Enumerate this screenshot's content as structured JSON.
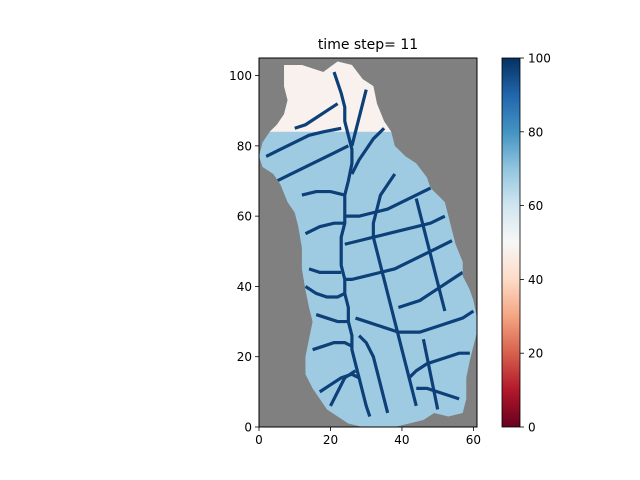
{
  "chart_data": {
    "type": "heatmap",
    "title": "time step= 11",
    "xlabel": "",
    "ylabel": "",
    "xlim": [
      0,
      61
    ],
    "ylim": [
      0,
      105
    ],
    "x_ticks": [
      0,
      20,
      40,
      60
    ],
    "y_ticks": [
      0,
      20,
      40,
      60,
      80,
      100
    ],
    "grid": false,
    "masked_color": "#808080",
    "colorbar": {
      "colormap": "RdBu",
      "vmin": 0,
      "vmax": 100,
      "ticks": [
        0,
        20,
        40,
        60,
        80,
        100
      ]
    },
    "domain_outline": {
      "description": "watershed mask outline as [x, y] in data units",
      "points": [
        [
          7,
          103
        ],
        [
          12,
          103
        ],
        [
          18,
          101
        ],
        [
          22,
          104
        ],
        [
          26,
          103
        ],
        [
          29,
          99
        ],
        [
          32,
          97
        ],
        [
          33,
          92
        ],
        [
          35,
          87
        ],
        [
          37,
          84
        ],
        [
          38,
          80
        ],
        [
          41,
          77
        ],
        [
          44,
          75
        ],
        [
          47,
          71
        ],
        [
          48,
          68
        ],
        [
          50,
          66
        ],
        [
          52,
          64
        ],
        [
          53,
          60
        ],
        [
          54,
          56
        ],
        [
          55,
          52
        ],
        [
          57,
          47
        ],
        [
          57,
          43
        ],
        [
          59,
          39
        ],
        [
          60,
          36
        ],
        [
          61,
          31
        ],
        [
          61,
          27
        ],
        [
          60,
          23
        ],
        [
          59,
          19
        ],
        [
          58,
          14
        ],
        [
          58,
          8
        ],
        [
          57,
          4
        ],
        [
          53,
          3
        ],
        [
          49,
          4
        ],
        [
          46,
          2
        ],
        [
          42,
          1
        ],
        [
          38,
          0
        ],
        [
          33,
          0
        ],
        [
          29,
          0
        ],
        [
          25,
          1
        ],
        [
          22,
          3
        ],
        [
          19,
          5
        ],
        [
          17,
          8
        ],
        [
          15,
          11
        ],
        [
          13,
          15
        ],
        [
          13,
          20
        ],
        [
          14,
          25
        ],
        [
          15,
          30
        ],
        [
          14,
          34
        ],
        [
          13,
          39
        ],
        [
          12,
          45
        ],
        [
          12,
          51
        ],
        [
          11,
          57
        ],
        [
          10,
          61
        ],
        [
          8,
          64
        ],
        [
          6,
          69
        ],
        [
          4,
          72
        ],
        [
          1,
          74
        ],
        [
          0,
          77
        ],
        [
          1,
          81
        ],
        [
          3,
          84
        ],
        [
          5,
          86
        ],
        [
          7,
          89
        ],
        [
          8,
          93
        ],
        [
          7,
          97
        ],
        [
          7,
          101
        ]
      ]
    },
    "dominant_fill_value": 68,
    "headwater_fill_value": 48,
    "channel_value": 97,
    "channel_network": [
      [
        [
          21,
          101
        ],
        [
          22,
          98
        ],
        [
          23,
          95
        ],
        [
          24,
          91
        ],
        [
          24,
          87
        ],
        [
          25,
          83
        ],
        [
          26,
          79
        ],
        [
          26,
          75
        ],
        [
          25,
          70
        ],
        [
          24,
          66
        ],
        [
          24,
          62
        ],
        [
          24,
          58
        ],
        [
          23,
          54
        ],
        [
          23,
          50
        ],
        [
          23,
          46
        ],
        [
          24,
          42
        ],
        [
          24,
          38
        ],
        [
          25,
          34
        ],
        [
          25,
          30
        ],
        [
          26,
          26
        ],
        [
          26,
          22
        ],
        [
          27,
          18
        ],
        [
          28,
          14
        ],
        [
          29,
          10
        ],
        [
          30,
          6
        ],
        [
          31,
          3
        ]
      ],
      [
        [
          10,
          85
        ],
        [
          13,
          86
        ],
        [
          16,
          88
        ],
        [
          19,
          90
        ],
        [
          22,
          92
        ]
      ],
      [
        [
          2,
          77
        ],
        [
          6,
          79
        ],
        [
          10,
          81
        ],
        [
          14,
          83
        ],
        [
          18,
          84
        ],
        [
          23,
          85
        ]
      ],
      [
        [
          30,
          96
        ],
        [
          29,
          92
        ],
        [
          28,
          88
        ],
        [
          27,
          84
        ],
        [
          26,
          80
        ]
      ],
      [
        [
          5,
          70
        ],
        [
          9,
          72
        ],
        [
          13,
          74
        ],
        [
          17,
          76
        ],
        [
          21,
          78
        ],
        [
          25,
          80
        ]
      ],
      [
        [
          35,
          85
        ],
        [
          32,
          82
        ],
        [
          30,
          79
        ],
        [
          28,
          76
        ],
        [
          26,
          72
        ]
      ],
      [
        [
          12,
          66
        ],
        [
          16,
          67
        ],
        [
          20,
          67
        ],
        [
          24,
          66
        ]
      ],
      [
        [
          13,
          55
        ],
        [
          17,
          57
        ],
        [
          21,
          58
        ],
        [
          24,
          58
        ]
      ],
      [
        [
          48,
          68
        ],
        [
          44,
          66
        ],
        [
          40,
          64
        ],
        [
          36,
          62
        ],
        [
          32,
          61
        ],
        [
          28,
          60
        ],
        [
          24,
          60
        ]
      ],
      [
        [
          52,
          60
        ],
        [
          48,
          58
        ],
        [
          44,
          57
        ],
        [
          40,
          56
        ],
        [
          36,
          55
        ],
        [
          32,
          54
        ],
        [
          28,
          53
        ],
        [
          24,
          52
        ]
      ],
      [
        [
          38,
          72
        ],
        [
          36,
          69
        ],
        [
          34,
          66
        ],
        [
          33,
          62
        ],
        [
          32,
          58
        ],
        [
          32,
          54
        ],
        [
          33,
          50
        ],
        [
          34,
          46
        ],
        [
          35,
          42
        ],
        [
          36,
          38
        ],
        [
          37,
          34
        ],
        [
          38,
          30
        ],
        [
          39,
          26
        ],
        [
          40,
          22
        ],
        [
          41,
          18
        ],
        [
          42,
          14
        ],
        [
          43,
          10
        ],
        [
          44,
          6
        ]
      ],
      [
        [
          54,
          53
        ],
        [
          50,
          51
        ],
        [
          46,
          49
        ],
        [
          42,
          47
        ],
        [
          38,
          45
        ],
        [
          34,
          44
        ],
        [
          30,
          43
        ],
        [
          26,
          42
        ],
        [
          24,
          42
        ]
      ],
      [
        [
          14,
          45
        ],
        [
          17,
          44
        ],
        [
          20,
          44
        ],
        [
          23,
          44
        ]
      ],
      [
        [
          13,
          40
        ],
        [
          16,
          38
        ],
        [
          19,
          37
        ],
        [
          22,
          37
        ],
        [
          24,
          38
        ]
      ],
      [
        [
          44,
          65
        ],
        [
          45,
          61
        ],
        [
          46,
          57
        ],
        [
          47,
          53
        ],
        [
          48,
          49
        ],
        [
          49,
          45
        ],
        [
          50,
          41
        ],
        [
          51,
          37
        ],
        [
          52,
          33
        ]
      ],
      [
        [
          57,
          44
        ],
        [
          54,
          42
        ],
        [
          51,
          40
        ],
        [
          48,
          38
        ],
        [
          45,
          36
        ],
        [
          42,
          35
        ],
        [
          39,
          34
        ]
      ],
      [
        [
          60,
          33
        ],
        [
          57,
          31
        ],
        [
          54,
          30
        ],
        [
          51,
          29
        ],
        [
          48,
          28
        ],
        [
          45,
          27
        ],
        [
          42,
          27
        ],
        [
          39,
          27
        ],
        [
          36,
          28
        ],
        [
          33,
          29
        ],
        [
          30,
          30
        ],
        [
          27,
          31
        ]
      ],
      [
        [
          16,
          32
        ],
        [
          19,
          31
        ],
        [
          22,
          30
        ],
        [
          25,
          30
        ]
      ],
      [
        [
          15,
          22
        ],
        [
          18,
          23
        ],
        [
          21,
          24
        ],
        [
          24,
          24
        ],
        [
          26,
          23
        ]
      ],
      [
        [
          59,
          21
        ],
        [
          56,
          21
        ],
        [
          53,
          20
        ],
        [
          50,
          19
        ],
        [
          47,
          18
        ],
        [
          44,
          16
        ],
        [
          42,
          14
        ]
      ],
      [
        [
          17,
          10
        ],
        [
          20,
          12
        ],
        [
          23,
          14
        ],
        [
          26,
          15
        ],
        [
          28,
          14
        ]
      ],
      [
        [
          56,
          8
        ],
        [
          53,
          9
        ],
        [
          50,
          10
        ],
        [
          47,
          11
        ],
        [
          44,
          11
        ]
      ],
      [
        [
          36,
          4
        ],
        [
          35,
          8
        ],
        [
          34,
          12
        ],
        [
          33,
          16
        ],
        [
          32,
          20
        ],
        [
          30,
          24
        ],
        [
          28,
          26
        ]
      ],
      [
        [
          50,
          5
        ],
        [
          49,
          10
        ],
        [
          48,
          15
        ],
        [
          47,
          20
        ],
        [
          46,
          25
        ]
      ],
      [
        [
          20,
          6
        ],
        [
          22,
          10
        ],
        [
          24,
          14
        ],
        [
          27,
          16
        ]
      ]
    ]
  }
}
